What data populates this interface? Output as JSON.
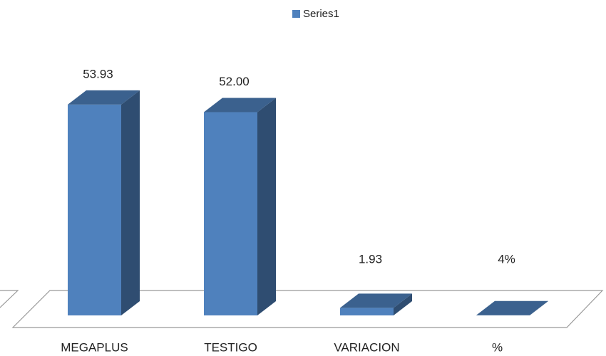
{
  "chart_data": {
    "type": "bar3d",
    "legend": "top",
    "series": [
      {
        "name": "Series1",
        "color": "#4f81bd",
        "values": [
          53.93,
          52.0,
          1.93,
          0.04
        ],
        "value_labels": [
          "53.93",
          "52.00",
          "1.93",
          "4%"
        ]
      }
    ],
    "categories": [
      "MEGAPLUS",
      "TESTIGO",
      "VARIACION",
      "%"
    ]
  }
}
